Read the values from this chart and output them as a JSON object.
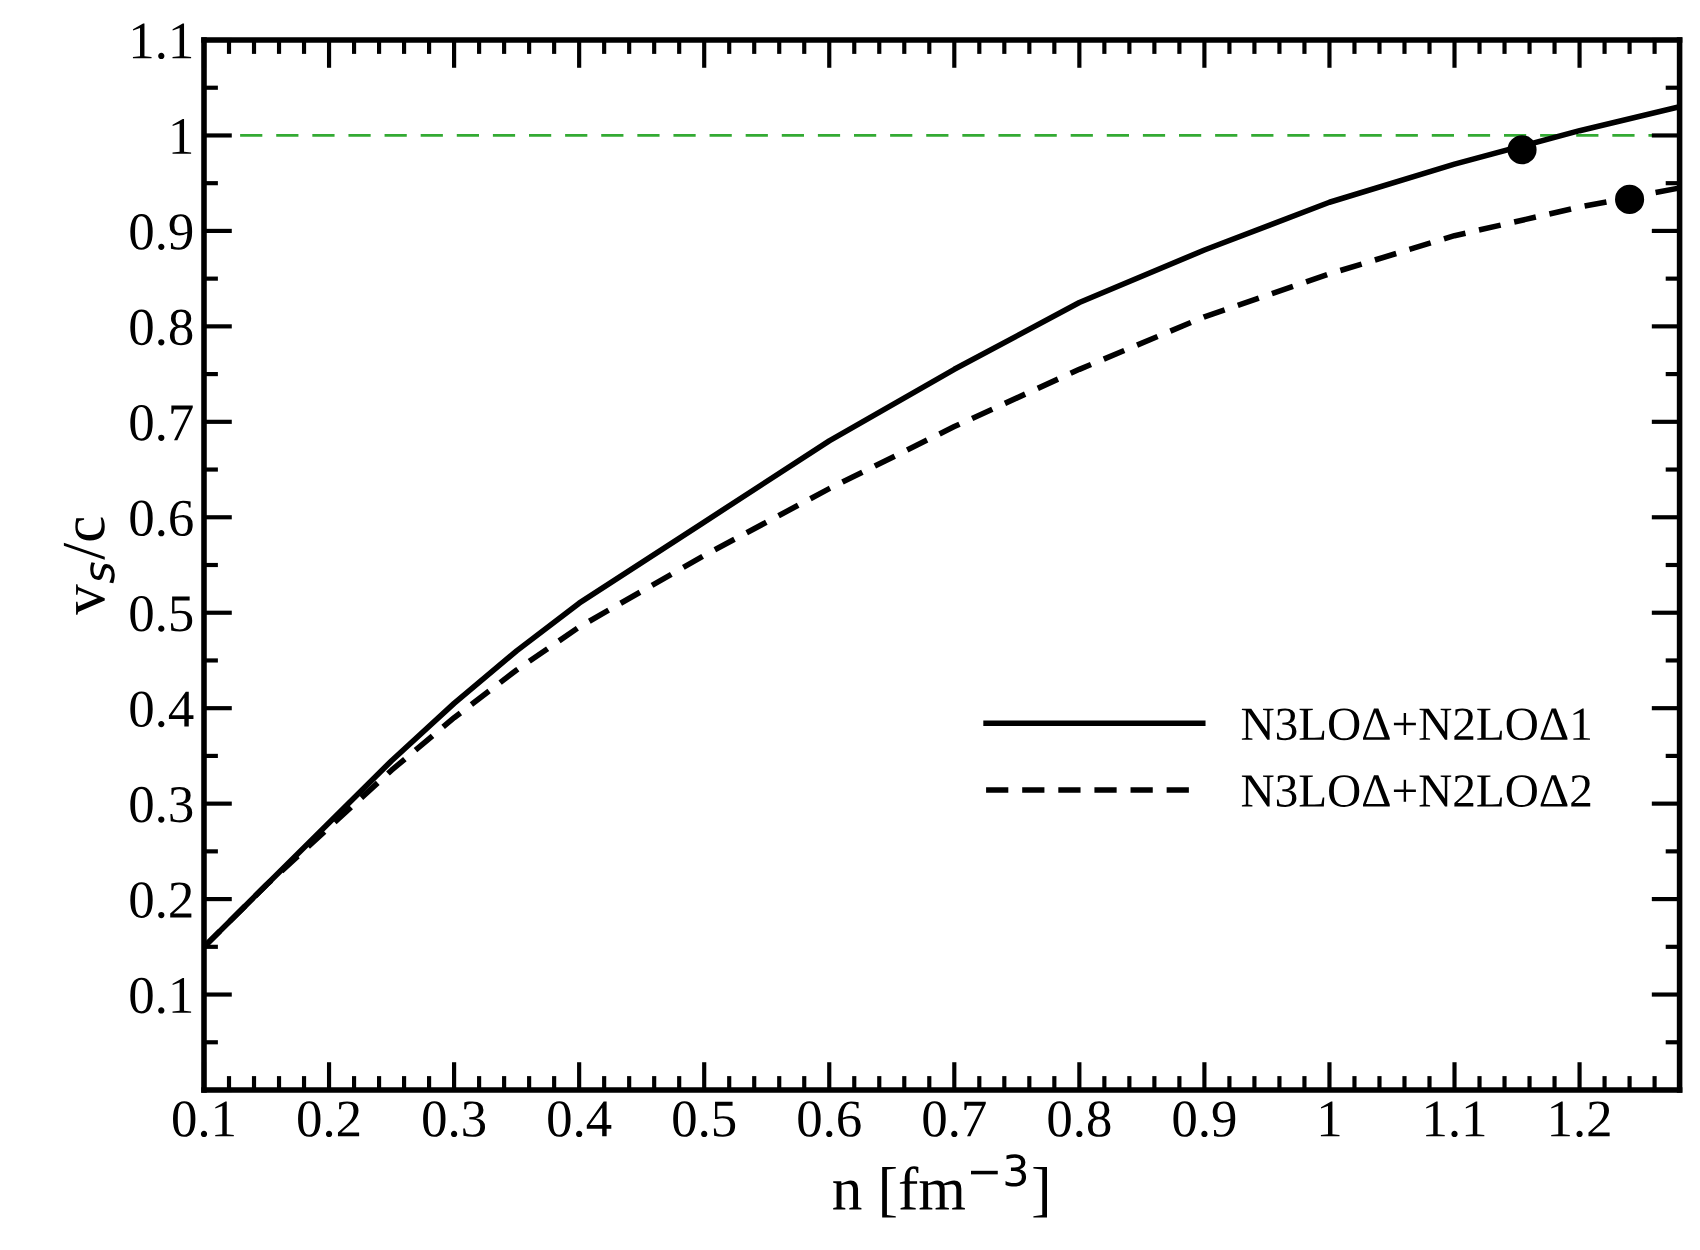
{
  "chart_data": {
    "type": "line",
    "xlabel": "n [fm$^{−3}$]",
    "ylabel": "v$_{s}$/c",
    "xlim": [
      0.1,
      1.28
    ],
    "ylim": [
      0,
      1.1
    ],
    "xticks": [
      0.1,
      0.2,
      0.3,
      0.4,
      0.5,
      0.6,
      0.7,
      0.8,
      0.9,
      1,
      1.1,
      1.2
    ],
    "yticks": [
      {
        "value": 0,
        "label": null
      },
      0.1,
      0.2,
      0.3,
      0.4,
      0.5,
      0.6,
      0.7,
      0.8,
      0.9,
      1,
      1.1
    ],
    "grid": false,
    "legend": "bottom right",
    "series": [
      {
        "name": "N3LOΔ+N2LOΔ1",
        "color": "#000000",
        "line_style": "solid",
        "x": [
          0.1,
          0.15,
          0.2,
          0.25,
          0.3,
          0.35,
          0.4,
          0.5,
          0.6,
          0.7,
          0.8,
          0.9,
          1.0,
          1.1,
          1.2,
          1.28
        ],
        "values": [
          0.15,
          0.215,
          0.28,
          0.345,
          0.405,
          0.46,
          0.51,
          0.595,
          0.68,
          0.755,
          0.825,
          0.88,
          0.93,
          0.97,
          1.005,
          1.03
        ]
      },
      {
        "name": "N3LOΔ+N2LOΔ2",
        "color": "#000000",
        "line_style": "dashed",
        "x": [
          0.1,
          0.15,
          0.2,
          0.25,
          0.3,
          0.35,
          0.4,
          0.5,
          0.6,
          0.7,
          0.8,
          0.9,
          1.0,
          1.1,
          1.2,
          1.28
        ],
        "values": [
          0.15,
          0.215,
          0.275,
          0.335,
          0.39,
          0.44,
          0.485,
          0.56,
          0.63,
          0.695,
          0.755,
          0.81,
          0.855,
          0.895,
          0.925,
          0.945
        ]
      },
      {
        "type": "scatter",
        "color": "#000000",
        "marker": "circle",
        "x": [
          1.154
        ],
        "values": [
          0.985
        ]
      },
      {
        "type": "scatter",
        "color": "#000000",
        "marker": "circle",
        "x": [
          1.24
        ],
        "values": [
          0.933
        ]
      }
    ],
    "ref_lines": [
      {
        "axis": "y",
        "value": 1,
        "color": "#33aa33",
        "line_style": "dashed"
      }
    ]
  }
}
